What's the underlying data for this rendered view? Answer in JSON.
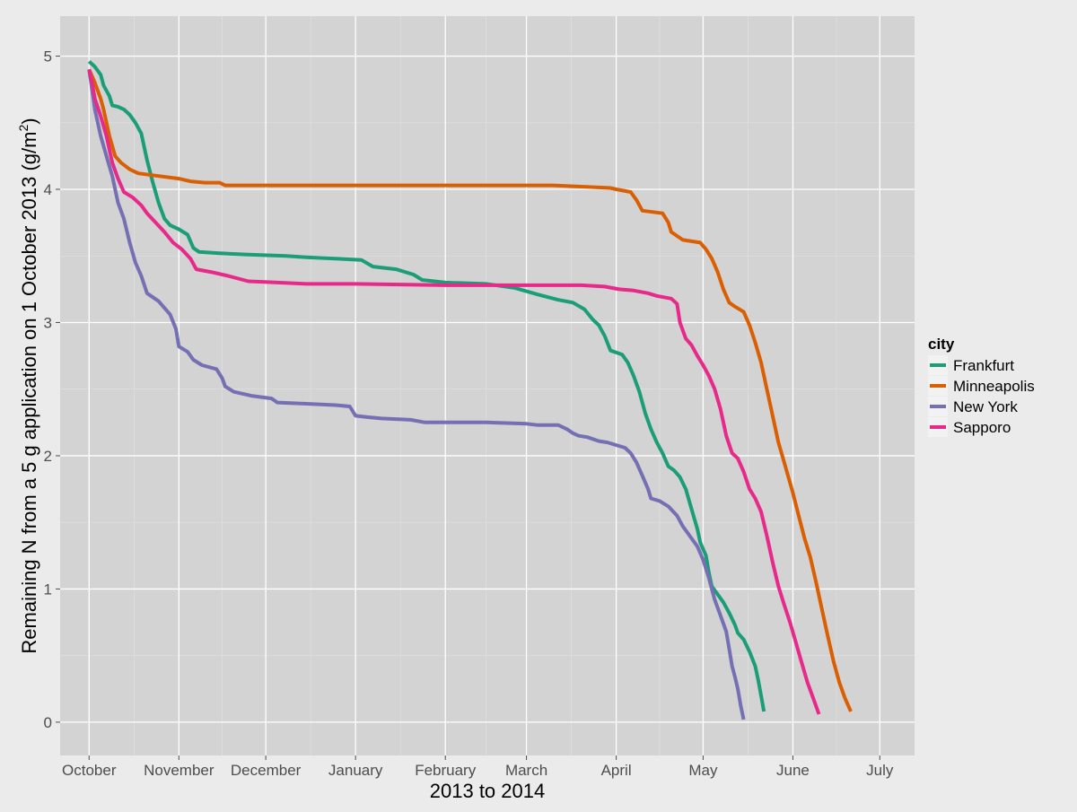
{
  "chart_data": {
    "type": "line",
    "title": "",
    "xlabel": "2013 to 2014",
    "ylabel_main": "Remaining N from a 5 g application on 1 October 2013 (g/m",
    "ylabel_sup": "2",
    "ylabel_end": ")",
    "xlim": [
      "2013-09-21",
      "2014-07-13"
    ],
    "ylim": [
      -0.25,
      5.3
    ],
    "x_ticks": [
      {
        "date": "2013-10-01",
        "label": "October"
      },
      {
        "date": "2013-11-01",
        "label": "November"
      },
      {
        "date": "2013-12-01",
        "label": "December"
      },
      {
        "date": "2014-01-01",
        "label": "January"
      },
      {
        "date": "2014-02-01",
        "label": "February"
      },
      {
        "date": "2014-03-01",
        "label": "March"
      },
      {
        "date": "2014-04-01",
        "label": "April"
      },
      {
        "date": "2014-05-01",
        "label": "May"
      },
      {
        "date": "2014-06-01",
        "label": "June"
      },
      {
        "date": "2014-07-01",
        "label": "July"
      }
    ],
    "y_ticks": [
      0,
      1,
      2,
      3,
      4,
      5
    ],
    "grid": true,
    "legend": {
      "title": "city",
      "position": "right"
    },
    "series": [
      {
        "name": "Frankfurt",
        "color": "#1b9e77",
        "points": [
          [
            "2013-10-01",
            4.96
          ],
          [
            "2013-10-03",
            4.92
          ],
          [
            "2013-10-05",
            4.86
          ],
          [
            "2013-10-06",
            4.78
          ],
          [
            "2013-10-08",
            4.7
          ],
          [
            "2013-10-09",
            4.63
          ],
          [
            "2013-10-11",
            4.62
          ],
          [
            "2013-10-13",
            4.6
          ],
          [
            "2013-10-15",
            4.56
          ],
          [
            "2013-10-17",
            4.5
          ],
          [
            "2013-10-19",
            4.42
          ],
          [
            "2013-10-21",
            4.22
          ],
          [
            "2013-10-23",
            4.05
          ],
          [
            "2013-10-25",
            3.9
          ],
          [
            "2013-10-27",
            3.78
          ],
          [
            "2013-10-29",
            3.73
          ],
          [
            "2013-11-01",
            3.7
          ],
          [
            "2013-11-04",
            3.66
          ],
          [
            "2013-11-06",
            3.56
          ],
          [
            "2013-11-08",
            3.53
          ],
          [
            "2013-11-15",
            3.52
          ],
          [
            "2013-11-25",
            3.51
          ],
          [
            "2013-12-08",
            3.5
          ],
          [
            "2013-12-15",
            3.49
          ],
          [
            "2013-12-25",
            3.48
          ],
          [
            "2014-01-03",
            3.47
          ],
          [
            "2014-01-07",
            3.42
          ],
          [
            "2014-01-15",
            3.4
          ],
          [
            "2014-01-21",
            3.36
          ],
          [
            "2014-01-24",
            3.32
          ],
          [
            "2014-02-01",
            3.3
          ],
          [
            "2014-02-15",
            3.29
          ],
          [
            "2014-02-25",
            3.26
          ],
          [
            "2014-03-05",
            3.21
          ],
          [
            "2014-03-12",
            3.17
          ],
          [
            "2014-03-17",
            3.15
          ],
          [
            "2014-03-21",
            3.1
          ],
          [
            "2014-03-24",
            3.02
          ],
          [
            "2014-03-26",
            2.98
          ],
          [
            "2014-03-28",
            2.9
          ],
          [
            "2014-03-30",
            2.79
          ],
          [
            "2014-04-03",
            2.76
          ],
          [
            "2014-04-05",
            2.7
          ],
          [
            "2014-04-07",
            2.6
          ],
          [
            "2014-04-09",
            2.48
          ],
          [
            "2014-04-11",
            2.32
          ],
          [
            "2014-04-13",
            2.2
          ],
          [
            "2014-04-15",
            2.1
          ],
          [
            "2014-04-17",
            2.02
          ],
          [
            "2014-04-19",
            1.92
          ],
          [
            "2014-04-21",
            1.89
          ],
          [
            "2014-04-23",
            1.84
          ],
          [
            "2014-04-25",
            1.75
          ],
          [
            "2014-04-27",
            1.6
          ],
          [
            "2014-04-29",
            1.45
          ],
          [
            "2014-04-30",
            1.35
          ],
          [
            "2014-05-02",
            1.25
          ],
          [
            "2014-05-03",
            1.12
          ],
          [
            "2014-05-04",
            1.02
          ],
          [
            "2014-05-06",
            0.96
          ],
          [
            "2014-05-08",
            0.9
          ],
          [
            "2014-05-10",
            0.82
          ],
          [
            "2014-05-12",
            0.73
          ],
          [
            "2014-05-13",
            0.67
          ],
          [
            "2014-05-15",
            0.62
          ],
          [
            "2014-05-17",
            0.53
          ],
          [
            "2014-05-19",
            0.42
          ],
          [
            "2014-05-20",
            0.32
          ],
          [
            "2014-05-21",
            0.2
          ],
          [
            "2014-05-22",
            0.08
          ]
        ]
      },
      {
        "name": "Minneapolis",
        "color": "#d95f02",
        "points": [
          [
            "2013-10-01",
            4.9
          ],
          [
            "2013-10-03",
            4.8
          ],
          [
            "2013-10-05",
            4.68
          ],
          [
            "2013-10-06",
            4.6
          ],
          [
            "2013-10-08",
            4.4
          ],
          [
            "2013-10-10",
            4.25
          ],
          [
            "2013-10-12",
            4.2
          ],
          [
            "2013-10-15",
            4.15
          ],
          [
            "2013-10-18",
            4.12
          ],
          [
            "2013-10-25",
            4.1
          ],
          [
            "2013-11-01",
            4.08
          ],
          [
            "2013-11-05",
            4.06
          ],
          [
            "2013-11-10",
            4.05
          ],
          [
            "2013-11-15",
            4.05
          ],
          [
            "2013-11-17",
            4.03
          ],
          [
            "2013-12-01",
            4.03
          ],
          [
            "2014-01-01",
            4.03
          ],
          [
            "2014-02-01",
            4.03
          ],
          [
            "2014-03-01",
            4.03
          ],
          [
            "2014-03-10",
            4.03
          ],
          [
            "2014-03-20",
            4.02
          ],
          [
            "2014-03-30",
            4.01
          ],
          [
            "2014-04-01",
            4.0
          ],
          [
            "2014-04-06",
            3.98
          ],
          [
            "2014-04-08",
            3.92
          ],
          [
            "2014-04-10",
            3.84
          ],
          [
            "2014-04-17",
            3.82
          ],
          [
            "2014-04-19",
            3.75
          ],
          [
            "2014-04-20",
            3.68
          ],
          [
            "2014-04-22",
            3.65
          ],
          [
            "2014-04-24",
            3.62
          ],
          [
            "2014-04-27",
            3.61
          ],
          [
            "2014-04-30",
            3.6
          ],
          [
            "2014-05-02",
            3.55
          ],
          [
            "2014-05-04",
            3.48
          ],
          [
            "2014-05-06",
            3.38
          ],
          [
            "2014-05-08",
            3.25
          ],
          [
            "2014-05-10",
            3.15
          ],
          [
            "2014-05-12",
            3.12
          ],
          [
            "2014-05-15",
            3.08
          ],
          [
            "2014-05-17",
            2.98
          ],
          [
            "2014-05-19",
            2.85
          ],
          [
            "2014-05-21",
            2.7
          ],
          [
            "2014-05-23",
            2.5
          ],
          [
            "2014-05-25",
            2.3
          ],
          [
            "2014-05-27",
            2.1
          ],
          [
            "2014-05-29",
            1.95
          ],
          [
            "2014-06-01",
            1.72
          ],
          [
            "2014-06-03",
            1.55
          ],
          [
            "2014-06-05",
            1.38
          ],
          [
            "2014-06-07",
            1.24
          ],
          [
            "2014-06-09",
            1.05
          ],
          [
            "2014-06-11",
            0.85
          ],
          [
            "2014-06-13",
            0.65
          ],
          [
            "2014-06-15",
            0.46
          ],
          [
            "2014-06-17",
            0.3
          ],
          [
            "2014-06-19",
            0.18
          ],
          [
            "2014-06-21",
            0.08
          ]
        ]
      },
      {
        "name": "New York",
        "color": "#7570b3",
        "points": [
          [
            "2013-10-01",
            4.9
          ],
          [
            "2013-10-02",
            4.75
          ],
          [
            "2013-10-03",
            4.6
          ],
          [
            "2013-10-05",
            4.4
          ],
          [
            "2013-10-07",
            4.25
          ],
          [
            "2013-10-09",
            4.1
          ],
          [
            "2013-10-11",
            3.9
          ],
          [
            "2013-10-13",
            3.78
          ],
          [
            "2013-10-15",
            3.6
          ],
          [
            "2013-10-17",
            3.45
          ],
          [
            "2013-10-19",
            3.35
          ],
          [
            "2013-10-21",
            3.22
          ],
          [
            "2013-10-25",
            3.16
          ],
          [
            "2013-10-29",
            3.06
          ],
          [
            "2013-10-31",
            2.95
          ],
          [
            "2013-11-01",
            2.82
          ],
          [
            "2013-11-04",
            2.78
          ],
          [
            "2013-11-06",
            2.72
          ],
          [
            "2013-11-09",
            2.68
          ],
          [
            "2013-11-14",
            2.65
          ],
          [
            "2013-11-16",
            2.58
          ],
          [
            "2013-11-17",
            2.52
          ],
          [
            "2013-11-20",
            2.48
          ],
          [
            "2013-11-26",
            2.45
          ],
          [
            "2013-12-03",
            2.43
          ],
          [
            "2013-12-05",
            2.4
          ],
          [
            "2013-12-15",
            2.39
          ],
          [
            "2013-12-25",
            2.38
          ],
          [
            "2013-12-30",
            2.37
          ],
          [
            "2014-01-01",
            2.3
          ],
          [
            "2014-01-05",
            2.29
          ],
          [
            "2014-01-10",
            2.28
          ],
          [
            "2014-01-20",
            2.27
          ],
          [
            "2014-01-25",
            2.25
          ],
          [
            "2014-02-01",
            2.25
          ],
          [
            "2014-02-15",
            2.25
          ],
          [
            "2014-03-01",
            2.24
          ],
          [
            "2014-03-05",
            2.23
          ],
          [
            "2014-03-12",
            2.23
          ],
          [
            "2014-03-15",
            2.2
          ],
          [
            "2014-03-17",
            2.17
          ],
          [
            "2014-03-19",
            2.15
          ],
          [
            "2014-03-22",
            2.14
          ],
          [
            "2014-03-26",
            2.11
          ],
          [
            "2014-03-29",
            2.1
          ],
          [
            "2014-04-01",
            2.08
          ],
          [
            "2014-04-04",
            2.06
          ],
          [
            "2014-04-06",
            2.02
          ],
          [
            "2014-04-08",
            1.95
          ],
          [
            "2014-04-10",
            1.85
          ],
          [
            "2014-04-12",
            1.75
          ],
          [
            "2014-04-13",
            1.68
          ],
          [
            "2014-04-16",
            1.66
          ],
          [
            "2014-04-19",
            1.62
          ],
          [
            "2014-04-22",
            1.55
          ],
          [
            "2014-04-24",
            1.47
          ],
          [
            "2014-04-27",
            1.38
          ],
          [
            "2014-04-29",
            1.32
          ],
          [
            "2014-05-01",
            1.22
          ],
          [
            "2014-05-03",
            1.08
          ],
          [
            "2014-05-05",
            0.92
          ],
          [
            "2014-05-07",
            0.8
          ],
          [
            "2014-05-09",
            0.68
          ],
          [
            "2014-05-10",
            0.55
          ],
          [
            "2014-05-11",
            0.42
          ],
          [
            "2014-05-12",
            0.34
          ],
          [
            "2014-05-13",
            0.25
          ],
          [
            "2014-05-14",
            0.12
          ],
          [
            "2014-05-15",
            0.02
          ]
        ]
      },
      {
        "name": "Sapporo",
        "color": "#e7298a",
        "points": [
          [
            "2013-10-01",
            4.9
          ],
          [
            "2013-10-02",
            4.8
          ],
          [
            "2013-10-03",
            4.68
          ],
          [
            "2013-10-05",
            4.55
          ],
          [
            "2013-10-07",
            4.4
          ],
          [
            "2013-10-09",
            4.2
          ],
          [
            "2013-10-11",
            4.08
          ],
          [
            "2013-10-13",
            3.98
          ],
          [
            "2013-10-16",
            3.94
          ],
          [
            "2013-10-19",
            3.88
          ],
          [
            "2013-10-21",
            3.82
          ],
          [
            "2013-10-24",
            3.75
          ],
          [
            "2013-10-27",
            3.68
          ],
          [
            "2013-10-30",
            3.6
          ],
          [
            "2013-11-02",
            3.55
          ],
          [
            "2013-11-05",
            3.48
          ],
          [
            "2013-11-07",
            3.4
          ],
          [
            "2013-11-12",
            3.38
          ],
          [
            "2013-11-18",
            3.35
          ],
          [
            "2013-11-25",
            3.31
          ],
          [
            "2013-12-05",
            3.3
          ],
          [
            "2013-12-15",
            3.29
          ],
          [
            "2014-01-01",
            3.29
          ],
          [
            "2014-02-01",
            3.28
          ],
          [
            "2014-03-01",
            3.28
          ],
          [
            "2014-03-20",
            3.28
          ],
          [
            "2014-03-28",
            3.27
          ],
          [
            "2014-04-02",
            3.25
          ],
          [
            "2014-04-07",
            3.24
          ],
          [
            "2014-04-12",
            3.22
          ],
          [
            "2014-04-15",
            3.2
          ],
          [
            "2014-04-20",
            3.18
          ],
          [
            "2014-04-22",
            3.14
          ],
          [
            "2014-04-23",
            3.0
          ],
          [
            "2014-04-25",
            2.88
          ],
          [
            "2014-04-27",
            2.83
          ],
          [
            "2014-04-29",
            2.75
          ],
          [
            "2014-05-01",
            2.68
          ],
          [
            "2014-05-03",
            2.6
          ],
          [
            "2014-05-05",
            2.5
          ],
          [
            "2014-05-07",
            2.35
          ],
          [
            "2014-05-09",
            2.15
          ],
          [
            "2014-05-11",
            2.02
          ],
          [
            "2014-05-13",
            1.98
          ],
          [
            "2014-05-15",
            1.88
          ],
          [
            "2014-05-17",
            1.75
          ],
          [
            "2014-05-19",
            1.68
          ],
          [
            "2014-05-21",
            1.58
          ],
          [
            "2014-05-23",
            1.4
          ],
          [
            "2014-05-25",
            1.2
          ],
          [
            "2014-05-27",
            1.02
          ],
          [
            "2014-05-29",
            0.88
          ],
          [
            "2014-05-31",
            0.75
          ],
          [
            "2014-06-02",
            0.6
          ],
          [
            "2014-06-04",
            0.45
          ],
          [
            "2014-06-06",
            0.3
          ],
          [
            "2014-06-08",
            0.18
          ],
          [
            "2014-06-10",
            0.06
          ]
        ]
      }
    ]
  }
}
